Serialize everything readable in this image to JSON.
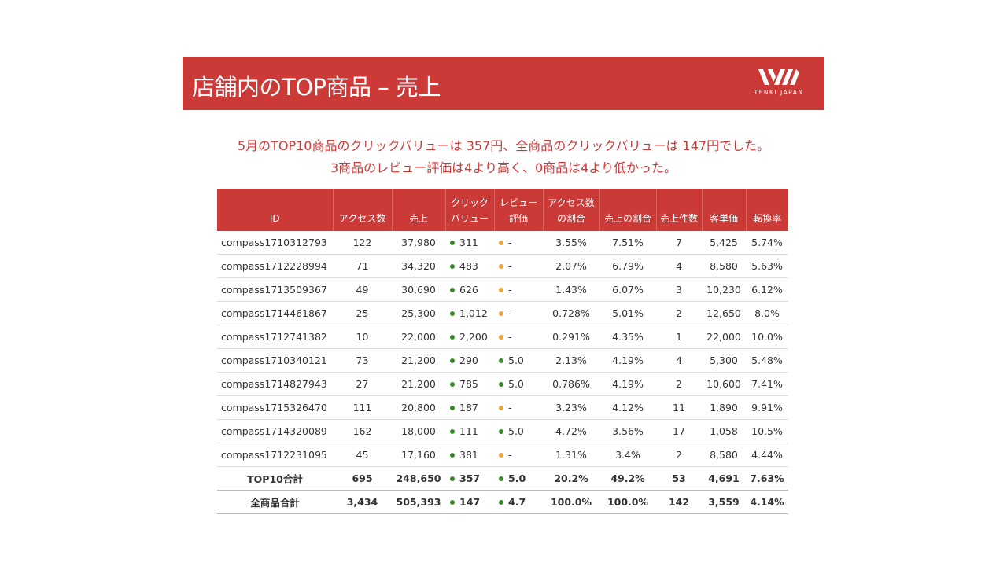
{
  "header": {
    "title": "店舗内のTOP商品 – 売上",
    "brand": "TENKI JAPAN",
    "color": "#cc3a38"
  },
  "summary": {
    "line1": "5月のTOP10商品のクリックバリューは 357円、全商品のクリックバリューは 147円でした。",
    "line2": "3商品のレビュー評価は4より高く、0商品は4より低かった。"
  },
  "table": {
    "columns": [
      {
        "key": "id",
        "label": [
          "ID"
        ]
      },
      {
        "key": "access",
        "label": [
          "アクセス数"
        ]
      },
      {
        "key": "sales",
        "label": [
          "売上"
        ]
      },
      {
        "key": "click",
        "label": [
          "クリック",
          "バリュー"
        ]
      },
      {
        "key": "review",
        "label": [
          "レビュー",
          "評価"
        ]
      },
      {
        "key": "access_share",
        "label": [
          "アクセス数",
          "の割合"
        ]
      },
      {
        "key": "sales_share",
        "label": [
          "売上の割合"
        ]
      },
      {
        "key": "count",
        "label": [
          "売上件数"
        ]
      },
      {
        "key": "avg",
        "label": [
          "客単価"
        ]
      },
      {
        "key": "conv",
        "label": [
          "転換率"
        ]
      }
    ],
    "rows": [
      {
        "id": "compass1710312793",
        "access": "122",
        "sales": "37,980",
        "click": "311",
        "click_dot": "green",
        "review": "-",
        "review_dot": "orange",
        "access_share": "3.55%",
        "sales_share": "7.51%",
        "count": "7",
        "avg": "5,425",
        "conv": "5.74%"
      },
      {
        "id": "compass1712228994",
        "access": "71",
        "sales": "34,320",
        "click": "483",
        "click_dot": "green",
        "review": "-",
        "review_dot": "orange",
        "access_share": "2.07%",
        "sales_share": "6.79%",
        "count": "4",
        "avg": "8,580",
        "conv": "5.63%"
      },
      {
        "id": "compass1713509367",
        "access": "49",
        "sales": "30,690",
        "click": "626",
        "click_dot": "green",
        "review": "-",
        "review_dot": "orange",
        "access_share": "1.43%",
        "sales_share": "6.07%",
        "count": "3",
        "avg": "10,230",
        "conv": "6.12%"
      },
      {
        "id": "compass1714461867",
        "access": "25",
        "sales": "25,300",
        "click": "1,012",
        "click_dot": "green",
        "review": "-",
        "review_dot": "orange",
        "access_share": "0.728%",
        "sales_share": "5.01%",
        "count": "2",
        "avg": "12,650",
        "conv": "8.0%"
      },
      {
        "id": "compass1712741382",
        "access": "10",
        "sales": "22,000",
        "click": "2,200",
        "click_dot": "green",
        "review": "-",
        "review_dot": "orange",
        "access_share": "0.291%",
        "sales_share": "4.35%",
        "count": "1",
        "avg": "22,000",
        "conv": "10.0%"
      },
      {
        "id": "compass1710340121",
        "access": "73",
        "sales": "21,200",
        "click": "290",
        "click_dot": "green",
        "review": "5.0",
        "review_dot": "green",
        "access_share": "2.13%",
        "sales_share": "4.19%",
        "count": "4",
        "avg": "5,300",
        "conv": "5.48%"
      },
      {
        "id": "compass1714827943",
        "access": "27",
        "sales": "21,200",
        "click": "785",
        "click_dot": "green",
        "review": "5.0",
        "review_dot": "green",
        "access_share": "0.786%",
        "sales_share": "4.19%",
        "count": "2",
        "avg": "10,600",
        "conv": "7.41%"
      },
      {
        "id": "compass1715326470",
        "access": "111",
        "sales": "20,800",
        "click": "187",
        "click_dot": "green",
        "review": "-",
        "review_dot": "orange",
        "access_share": "3.23%",
        "sales_share": "4.12%",
        "count": "11",
        "avg": "1,890",
        "conv": "9.91%"
      },
      {
        "id": "compass1714320089",
        "access": "162",
        "sales": "18,000",
        "click": "111",
        "click_dot": "green",
        "review": "5.0",
        "review_dot": "green",
        "access_share": "4.72%",
        "sales_share": "3.56%",
        "count": "17",
        "avg": "1,058",
        "conv": "10.5%"
      },
      {
        "id": "compass1712231095",
        "access": "45",
        "sales": "17,160",
        "click": "381",
        "click_dot": "green",
        "review": "-",
        "review_dot": "orange",
        "access_share": "1.31%",
        "sales_share": "3.4%",
        "count": "2",
        "avg": "8,580",
        "conv": "4.44%"
      }
    ],
    "totals": [
      {
        "id": "TOP10合計",
        "access": "695",
        "sales": "248,650",
        "click": "357",
        "click_dot": "green",
        "review": "5.0",
        "review_dot": "green",
        "access_share": "20.2%",
        "sales_share": "49.2%",
        "count": "53",
        "avg": "4,691",
        "conv": "7.63%"
      },
      {
        "id": "全商品合計",
        "access": "3,434",
        "sales": "505,393",
        "click": "147",
        "click_dot": "green",
        "review": "4.7",
        "review_dot": "green",
        "access_share": "100.0%",
        "sales_share": "100.0%",
        "count": "142",
        "avg": "3,559",
        "conv": "4.14%"
      }
    ]
  },
  "colors": {
    "green": "#3a8a2a",
    "orange": "#e8a33a",
    "red": "#cc3a38"
  }
}
